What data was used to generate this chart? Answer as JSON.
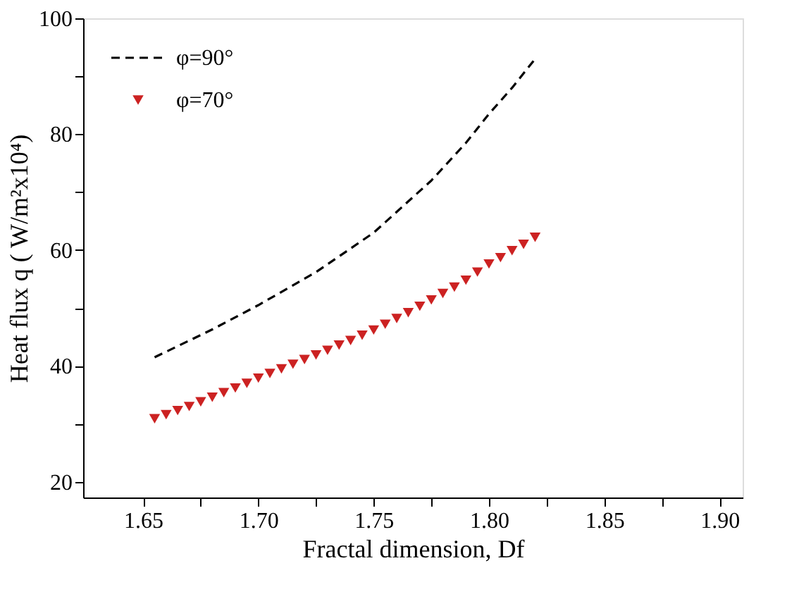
{
  "chart_data": {
    "type": "line",
    "xlabel": "Fractal dimension, Df",
    "ylabel": "Heat flux q ( W/m²x10⁴)",
    "xlim": [
      1.624,
      1.91
    ],
    "ylim": [
      17.3,
      100
    ],
    "xticks": [
      {
        "value": 1.65,
        "label": "1.65"
      },
      {
        "value": 1.675,
        "label": null
      },
      {
        "value": 1.7,
        "label": "1.70"
      },
      {
        "value": 1.725,
        "label": null
      },
      {
        "value": 1.75,
        "label": "1.75"
      },
      {
        "value": 1.775,
        "label": null
      },
      {
        "value": 1.8,
        "label": "1.80"
      },
      {
        "value": 1.825,
        "label": null
      },
      {
        "value": 1.85,
        "label": "1.85"
      },
      {
        "value": 1.875,
        "label": null
      },
      {
        "value": 1.9,
        "label": "1.90"
      }
    ],
    "yticks": [
      20,
      {
        "value": 30,
        "label": null
      },
      40,
      {
        "value": 50,
        "label": null
      },
      60,
      {
        "value": 70,
        "label": null
      },
      80,
      {
        "value": 90,
        "label": null
      },
      100
    ],
    "grid": false,
    "legend": "top left",
    "series": [
      {
        "name": "φ=90°",
        "line_style": "dashed",
        "color": "#000000",
        "x": [
          1.655,
          1.68,
          1.7,
          1.725,
          1.75,
          1.775,
          1.79,
          1.8,
          1.81,
          1.82
        ],
        "values": [
          41.5,
          46.3,
          50.5,
          56.2,
          63.0,
          72.0,
          78.5,
          83.5,
          88.0,
          93.0
        ]
      },
      {
        "name": "φ=70°",
        "type": "scatter",
        "marker": "triangle",
        "color": "#cc2222",
        "x": [
          1.655,
          1.66,
          1.665,
          1.67,
          1.675,
          1.68,
          1.685,
          1.69,
          1.695,
          1.7,
          1.705,
          1.71,
          1.715,
          1.72,
          1.725,
          1.73,
          1.735,
          1.74,
          1.745,
          1.75,
          1.755,
          1.76,
          1.765,
          1.77,
          1.775,
          1.78,
          1.785,
          1.79,
          1.795,
          1.8,
          1.805,
          1.81,
          1.815,
          1.82
        ],
        "values": [
          30.9,
          31.6,
          32.3,
          33.0,
          33.8,
          34.6,
          35.4,
          36.2,
          37.0,
          37.9,
          38.7,
          39.5,
          40.3,
          41.1,
          41.9,
          42.7,
          43.6,
          44.4,
          45.3,
          46.2,
          47.2,
          48.2,
          49.2,
          50.3,
          51.4,
          52.5,
          53.6,
          54.8,
          56.2,
          57.6,
          58.7,
          59.9,
          61.0,
          62.2
        ]
      }
    ]
  }
}
